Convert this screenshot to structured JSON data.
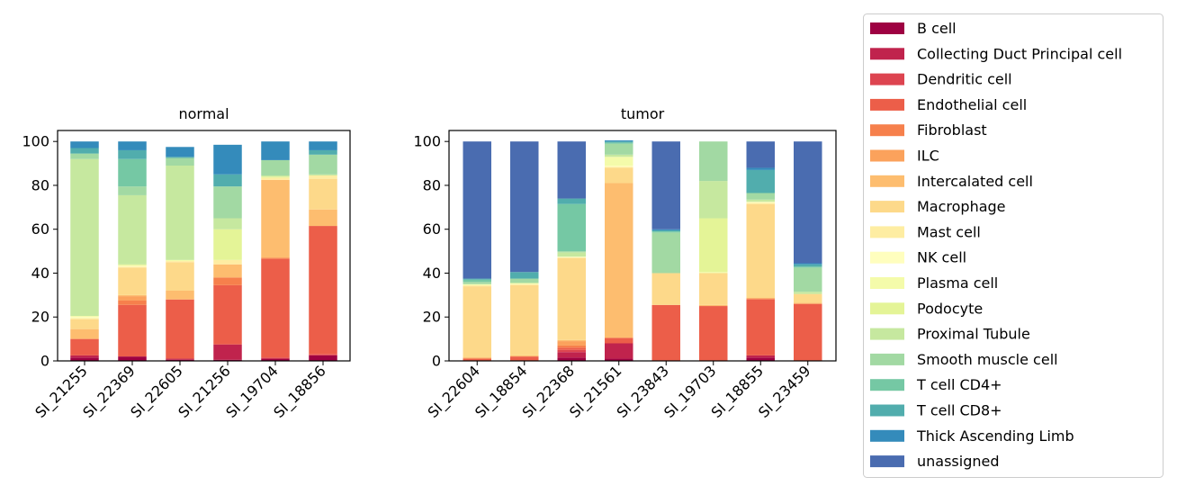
{
  "chart_data": [
    {
      "type": "bar",
      "stacked": true,
      "title": "normal",
      "xlabel": "",
      "ylabel": "",
      "ylim": [
        0,
        105
      ],
      "yticks": [
        0,
        20,
        40,
        60,
        80,
        100
      ],
      "categories": [
        "SI_21255",
        "SI_22369",
        "SI_22605",
        "SI_21256",
        "SI_19704",
        "SI_18856"
      ],
      "series": [
        {
          "name": "B cell",
          "values": [
            1.5,
            2.0,
            0.5,
            0.5,
            1.0,
            2.5
          ]
        },
        {
          "name": "Collecting Duct Principal cell",
          "values": [
            1.0,
            0.0,
            0.5,
            7.0,
            0.0,
            0.0
          ]
        },
        {
          "name": "Dendritic cell",
          "values": [
            0.0,
            0.0,
            0.0,
            0.0,
            0.5,
            0.5
          ]
        },
        {
          "name": "Endothelial cell",
          "values": [
            7.5,
            23.5,
            27.0,
            27.0,
            45.0,
            58.5
          ]
        },
        {
          "name": "Fibroblast",
          "values": [
            0.0,
            2.0,
            0.0,
            3.5,
            0.5,
            0.0
          ]
        },
        {
          "name": "ILC",
          "values": [
            0.0,
            2.0,
            0.0,
            0.0,
            0.0,
            0.0
          ]
        },
        {
          "name": "Intercalated cell",
          "values": [
            4.5,
            0.5,
            4.0,
            6.0,
            35.5,
            7.5
          ]
        },
        {
          "name": "Macrophage",
          "values": [
            4.5,
            12.5,
            13.0,
            0.0,
            0.0,
            14.0
          ]
        },
        {
          "name": "Mast cell",
          "values": [
            0.5,
            0.5,
            0.5,
            2.0,
            1.0,
            1.5
          ]
        },
        {
          "name": "NK cell",
          "values": [
            0.5,
            0.5,
            0.0,
            0.0,
            0.0,
            0.0
          ]
        },
        {
          "name": "Plasma cell",
          "values": [
            0.5,
            0.0,
            0.5,
            0.0,
            0.0,
            0.0
          ]
        },
        {
          "name": "Podocyte",
          "values": [
            0.0,
            0.5,
            0.0,
            14.0,
            0.5,
            0.0
          ]
        },
        {
          "name": "Proximal Tubule",
          "values": [
            71.5,
            31.5,
            43.0,
            5.0,
            0.5,
            0.5
          ]
        },
        {
          "name": "Smooth muscle cell",
          "values": [
            2.5,
            4.0,
            3.5,
            14.5,
            7.0,
            9.0
          ]
        },
        {
          "name": "T cell CD4+",
          "values": [
            0.0,
            12.5,
            0.0,
            0.0,
            0.0,
            0.0
          ]
        },
        {
          "name": "T cell CD8+",
          "values": [
            2.5,
            4.0,
            0.5,
            5.5,
            0.0,
            2.0
          ]
        },
        {
          "name": "Thick Ascending Limb",
          "values": [
            3.0,
            4.0,
            4.5,
            13.5,
            8.5,
            4.0
          ]
        },
        {
          "name": "unassigned",
          "values": [
            0.0,
            0.0,
            0.0,
            0.0,
            0.0,
            0.0
          ]
        }
      ]
    },
    {
      "type": "bar",
      "stacked": true,
      "title": "tumor",
      "xlabel": "",
      "ylabel": "",
      "ylim": [
        0,
        105
      ],
      "yticks": [
        0,
        20,
        40,
        60,
        80,
        100
      ],
      "categories": [
        "SI_22604",
        "SI_18854",
        "SI_22368",
        "SI_21561",
        "SI_23843",
        "SI_19703",
        "SI_18855",
        "SI_23459"
      ],
      "series": [
        {
          "name": "B cell",
          "values": [
            0.0,
            0.0,
            1.5,
            1.0,
            0.0,
            0.0,
            1.5,
            0.0
          ]
        },
        {
          "name": "Collecting Duct Principal cell",
          "values": [
            0.0,
            0.0,
            2.5,
            7.0,
            0.0,
            0.0,
            1.0,
            0.0
          ]
        },
        {
          "name": "Dendritic cell",
          "values": [
            0.0,
            0.0,
            1.0,
            0.0,
            0.0,
            0.0,
            0.0,
            0.0
          ]
        },
        {
          "name": "Endothelial cell",
          "values": [
            1.0,
            2.0,
            1.0,
            2.5,
            25.5,
            25.0,
            25.5,
            26.0
          ]
        },
        {
          "name": "Fibroblast",
          "values": [
            0.0,
            0.0,
            1.0,
            0.0,
            0.0,
            0.0,
            0.5,
            0.0
          ]
        },
        {
          "name": "ILC",
          "values": [
            0.5,
            0.0,
            2.0,
            0.0,
            0.0,
            0.0,
            0.0,
            0.0
          ]
        },
        {
          "name": "Intercalated cell",
          "values": [
            0.0,
            0.5,
            0.5,
            70.5,
            0.0,
            0.5,
            0.0,
            0.5
          ]
        },
        {
          "name": "Macrophage",
          "values": [
            32.5,
            32.0,
            37.5,
            7.0,
            14.5,
            14.5,
            43.0,
            4.0
          ]
        },
        {
          "name": "Mast cell",
          "values": [
            0.5,
            0.5,
            0.0,
            0.5,
            0.0,
            0.0,
            0.5,
            0.0
          ]
        },
        {
          "name": "NK cell",
          "values": [
            0.0,
            0.0,
            0.5,
            0.5,
            0.0,
            0.0,
            0.5,
            0.0
          ]
        },
        {
          "name": "Plasma cell",
          "values": [
            0.5,
            0.5,
            0.0,
            4.0,
            0.0,
            0.5,
            0.0,
            0.0
          ]
        },
        {
          "name": "Podocyte",
          "values": [
            0.0,
            0.0,
            0.0,
            0.0,
            0.0,
            24.5,
            0.0,
            0.0
          ]
        },
        {
          "name": "Proximal Tubule",
          "values": [
            0.0,
            0.0,
            2.0,
            1.0,
            0.0,
            17.0,
            1.0,
            1.0
          ]
        },
        {
          "name": "Smooth muscle cell",
          "values": [
            1.0,
            2.0,
            0.5,
            5.0,
            18.5,
            18.0,
            3.0,
            11.0
          ]
        },
        {
          "name": "T cell CD4+",
          "values": [
            1.0,
            0.0,
            21.5,
            0.5,
            0.5,
            0.0,
            0.0,
            0.5
          ]
        },
        {
          "name": "T cell CD8+",
          "values": [
            0.5,
            3.0,
            2.5,
            0.5,
            0.5,
            0.0,
            10.5,
            1.0
          ]
        },
        {
          "name": "Thick Ascending Limb",
          "values": [
            0.0,
            0.0,
            0.0,
            0.5,
            0.5,
            0.0,
            1.0,
            0.5
          ]
        },
        {
          "name": "unassigned",
          "values": [
            62.5,
            59.5,
            26.0,
            0.0,
            40.0,
            0.0,
            12.0,
            55.5
          ]
        }
      ]
    }
  ],
  "legend": {
    "placement": "right",
    "entries": [
      {
        "label": "B cell",
        "color": "#9e0142"
      },
      {
        "label": "Collecting Duct Principal cell",
        "color": "#c0234d"
      },
      {
        "label": "Dendritic cell",
        "color": "#dd4450"
      },
      {
        "label": "Endothelial cell",
        "color": "#ec5e49"
      },
      {
        "label": "Fibroblast",
        "color": "#f6804c"
      },
      {
        "label": "ILC",
        "color": "#fba25c"
      },
      {
        "label": "Intercalated cell",
        "color": "#fdbd6f"
      },
      {
        "label": "Macrophage",
        "color": "#fdd98a"
      },
      {
        "label": "Mast cell",
        "color": "#feeda2"
      },
      {
        "label": "NK cell",
        "color": "#fffebe"
      },
      {
        "label": "Plasma cell",
        "color": "#f4fbaa"
      },
      {
        "label": "Podocyte",
        "color": "#e4f497"
      },
      {
        "label": "Proximal Tubule",
        "color": "#c6e89f"
      },
      {
        "label": "Smooth muscle cell",
        "color": "#a2d9a3"
      },
      {
        "label": "T cell CD4+",
        "color": "#75c8a4"
      },
      {
        "label": "T cell CD8+",
        "color": "#51adad"
      },
      {
        "label": "Thick Ascending Limb",
        "color": "#348bbb"
      },
      {
        "label": "unassigned",
        "color": "#4a6cb0"
      }
    ]
  }
}
